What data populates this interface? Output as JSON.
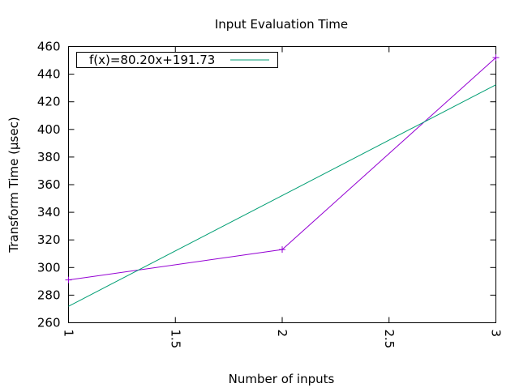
{
  "chart_data": {
    "type": "line",
    "title": "Input Evaluation Time",
    "xlabel": "Number of inputs",
    "ylabel": "Transform Time (µsec)",
    "xlim": [
      1,
      3
    ],
    "ylim": [
      260,
      460
    ],
    "xticks": [
      "1",
      "1.5",
      "2",
      "2.5",
      "3"
    ],
    "yticks": [
      "260",
      "280",
      "300",
      "320",
      "340",
      "360",
      "380",
      "400",
      "420",
      "440",
      "460"
    ],
    "grid": false,
    "legend_position": "top-left",
    "series": [
      {
        "name": "",
        "color": "#9400d3",
        "marker": "plus",
        "x": [
          1,
          2,
          3
        ],
        "y": [
          291,
          313,
          452
        ]
      },
      {
        "name": "f(x)=80.20x+191.73",
        "color": "#009e73",
        "marker": "none",
        "x": [
          1,
          3
        ],
        "y": [
          271.93,
          432.33
        ]
      }
    ]
  }
}
